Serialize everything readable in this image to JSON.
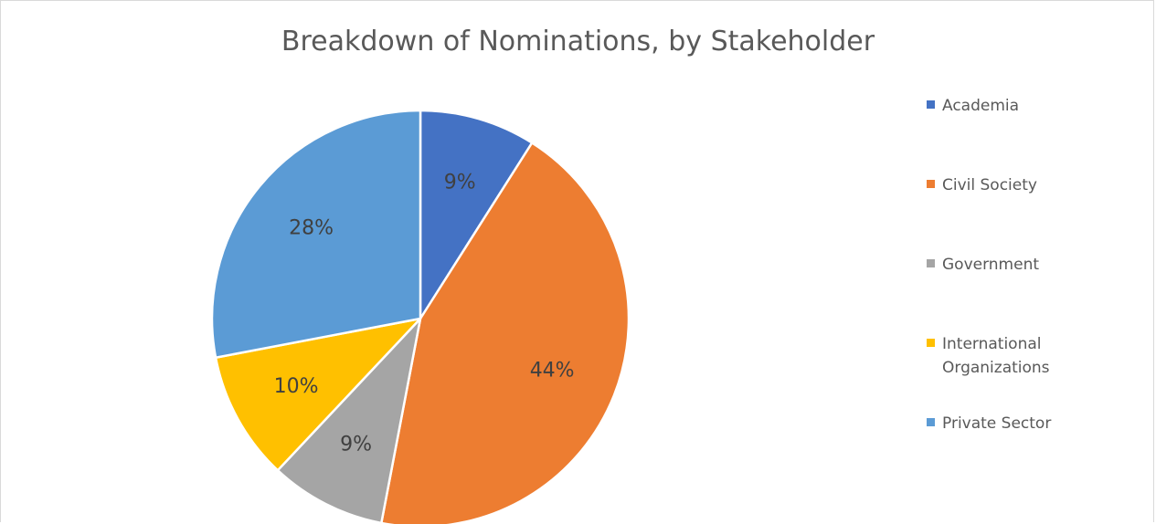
{
  "chart_data": {
    "type": "pie",
    "title": "Breakdown of Nominations, by Stakeholder",
    "slices": [
      {
        "label": "Academia",
        "value": 9,
        "display": "9%",
        "color": "#4472C4"
      },
      {
        "label": "Civil Society",
        "value": 44,
        "display": "44%",
        "color": "#ED7D31"
      },
      {
        "label": "Government",
        "value": 9,
        "display": "9%",
        "color": "#A5A5A5"
      },
      {
        "label": "International Organizations",
        "value": 10,
        "display": "10%",
        "color": "#FFC000"
      },
      {
        "label": "Private Sector",
        "value": 28,
        "display": "28%",
        "color": "#5B9BD5"
      }
    ],
    "legend_position": "right",
    "start_angle": "12 o'clock, clockwise"
  }
}
